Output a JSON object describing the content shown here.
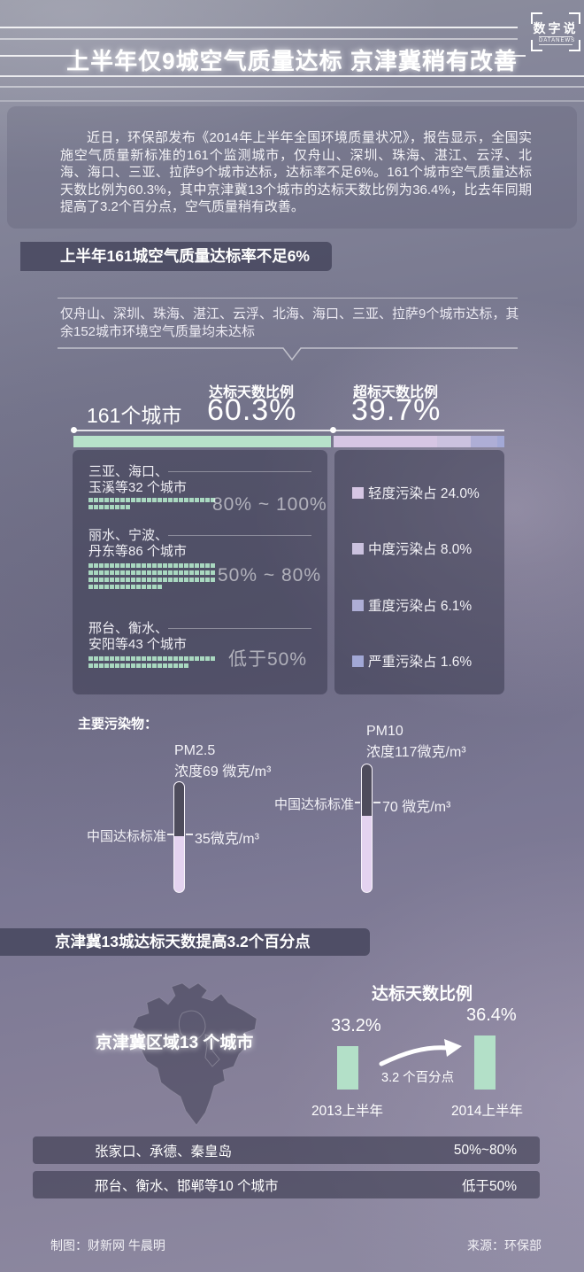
{
  "brand": {
    "logo_main": "数字说",
    "logo_sub": "DATANEWS"
  },
  "header": {
    "title": "上半年仅9城空气质量达标 京津冀稍有改善"
  },
  "intro": {
    "text": "近日，环保部发布《2014年上半年全国环境质量状况》，报告显示，全国实施空气质量新标准的161个监测城市，仅舟山、深圳、珠海、湛江、云浮、北海、海口、三亚、拉萨9个城市达标，达标率不足6%。161个城市空气质量达标天数比例为60.3%，其中京津冀13个城市的达标天数比例为36.4%，比去年同期提高了3.2个百分点，空气质量稍有改善。"
  },
  "section1": {
    "heading": "上半年161城空气质量达标率不足6%",
    "callout": "仅舟山、深圳、珠海、湛江、云浮、北海、海口、三亚、拉萨9个城市达标，其余152城市环境空气质量均未达标",
    "total_label": "161个城市",
    "attain_label": "达标天数比例",
    "attain_value": "60.3%",
    "exceed_label": "超标天数比例",
    "exceed_value": "39.7%",
    "groups": [
      {
        "cities_line1": "三亚、海口、",
        "cities_line2": "玉溪等32 个城市",
        "count": 32,
        "range": "80% ~ 100%"
      },
      {
        "cities_line1": "丽水、宁波、",
        "cities_line2": "丹东等86 个城市",
        "count": 86,
        "range": "50% ~ 80%"
      },
      {
        "cities_line1": "邢台、衡水、",
        "cities_line2": "安阳等43 个城市",
        "count": 43,
        "range": "低于50%"
      }
    ],
    "legend": [
      {
        "label": "轻度污染占",
        "value": "24.0%",
        "color": "#d6c6e4"
      },
      {
        "label": "中度污染占",
        "value": "8.0%",
        "color": "#cbc2df"
      },
      {
        "label": "重度污染占",
        "value": "6.1%",
        "color": "#aeaed6"
      },
      {
        "label": "严重污染占",
        "value": "1.6%",
        "color": "#a2a8d6"
      }
    ]
  },
  "pollutants": {
    "heading": "主要污染物：",
    "items": [
      {
        "name": "PM2.5",
        "conc_label": "浓度69 微克/m³",
        "standard_label": "中国达标标准",
        "standard_value_label": "35微克/m³"
      },
      {
        "name": "PM10",
        "conc_label": "浓度117微克/m³",
        "standard_label": "中国达标标准",
        "standard_value_label": "70 微克/m³"
      }
    ]
  },
  "section2": {
    "heading": "京津冀13城达标天数提高3.2个百分点",
    "region_label": "京津冀区域13 个城市",
    "chart_title": "达标天数比例",
    "bars": [
      {
        "value_label": "33.2%",
        "xlabel": "2013上半年"
      },
      {
        "value_label": "36.4%",
        "xlabel": "2014上半年"
      }
    ],
    "annotation": "3.2 个百分点",
    "rows": [
      {
        "cities": "张家口、承德、秦皇岛",
        "range": "50%~80%"
      },
      {
        "cities": "邢台、衡水、邯郸等10 个城市",
        "range": "低于50%"
      }
    ]
  },
  "footer": {
    "credit": "制图：财新网 牛晨明",
    "source": "来源：环保部"
  },
  "colors": {
    "green": "#b7e2ca",
    "waffle": "#a9d8c0",
    "bar_green": "#b3e0c8",
    "tube_dark": "#4e4c5c",
    "tube_light": "#e4d3f0"
  },
  "chart_data": [
    {
      "type": "bar",
      "subtype": "stacked-horizontal",
      "title": "161个城市 达标/超标天数比例",
      "unit": "%",
      "segments": [
        {
          "name": "达标天数",
          "value": 60.3,
          "color": "#b7e2ca"
        },
        {
          "name": "轻度污染",
          "value": 24.0,
          "color": "#d6c6e4"
        },
        {
          "name": "中度污染",
          "value": 8.0,
          "color": "#cbc2df"
        },
        {
          "name": "重度污染",
          "value": 6.1,
          "color": "#aeaed6"
        },
        {
          "name": "严重污染",
          "value": 1.6,
          "color": "#a2a8d6"
        }
      ]
    },
    {
      "type": "table",
      "title": "城市达标天数比例分组",
      "rows": [
        [
          "三亚、海口、玉溪等32 个城市",
          "80% ~ 100%"
        ],
        [
          "丽水、宁波、丹东等86 个城市",
          "50% ~ 80%"
        ],
        [
          "邢台、衡水、安阳等43 个城市",
          "低于50%"
        ]
      ]
    },
    {
      "type": "bar",
      "subtype": "thermometer",
      "title": "主要污染物",
      "categories": [
        "PM2.5",
        "PM10"
      ],
      "series": [
        {
          "name": "浓度",
          "values": [
            69,
            117
          ]
        },
        {
          "name": "中国达标标准",
          "values": [
            35,
            70
          ]
        }
      ],
      "unit": "微克/m³"
    },
    {
      "type": "bar",
      "title": "京津冀区域13个城市 达标天数比例",
      "categories": [
        "2013上半年",
        "2014上半年"
      ],
      "values": [
        33.2,
        36.4
      ],
      "annotation": "3.2 个百分点",
      "unit": "%"
    },
    {
      "type": "table",
      "title": "京津冀城市分组",
      "rows": [
        [
          "张家口、承德、秦皇岛",
          "50%~80%"
        ],
        [
          "邢台、衡水、邯郸等10 个城市",
          "低于50%"
        ]
      ]
    }
  ]
}
